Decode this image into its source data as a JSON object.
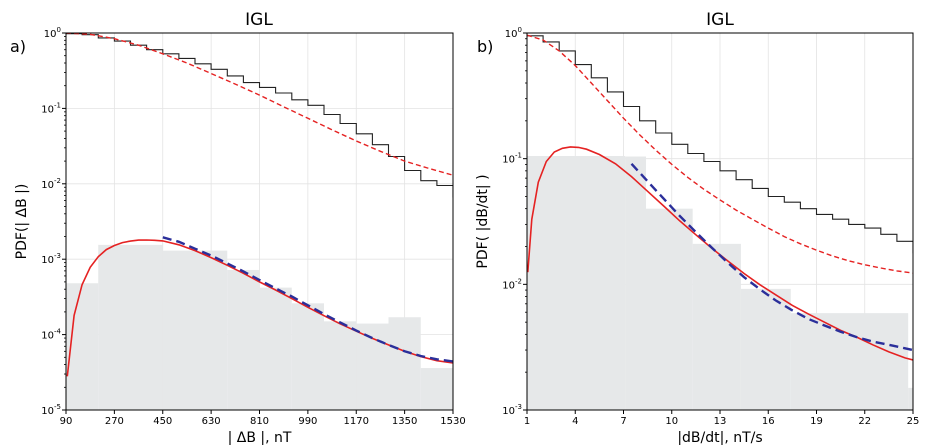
{
  "chart_data": [
    {
      "type": "line",
      "panel_label": "a)",
      "title": "IGL",
      "xlabel": "| ΔB |, nT",
      "ylabel": "PDF(| ΔB |)",
      "x_scale": "linear",
      "y_scale": "log",
      "xlim": [
        90,
        1530
      ],
      "ylim": [
        1e-05,
        1
      ],
      "x_ticks": [
        90,
        270,
        450,
        630,
        810,
        990,
        1170,
        1350,
        1530
      ],
      "y_ticks": [
        {
          "value": 1,
          "mant": "10",
          "exp": "0"
        },
        {
          "value": 0.1,
          "mant": "10",
          "exp": "-1"
        },
        {
          "value": 0.01,
          "mant": "10",
          "exp": "-2"
        },
        {
          "value": 0.001,
          "mant": "10",
          "exp": "-3"
        },
        {
          "value": 0.0001,
          "mant": "10",
          "exp": "-4"
        },
        {
          "value": 1e-05,
          "mant": "10",
          "exp": "-5"
        }
      ],
      "grid": true,
      "histogram": {
        "color": "#e6e8e9",
        "bins": [
          [
            90,
            210,
            0.00048
          ],
          [
            210,
            450,
            0.00155
          ],
          [
            450,
            690,
            0.0013
          ],
          [
            690,
            810,
            0.00072
          ],
          [
            810,
            930,
            0.00042
          ],
          [
            930,
            1050,
            0.00026
          ],
          [
            1050,
            1170,
            0.00015
          ],
          [
            1170,
            1290,
            0.00014
          ],
          [
            1290,
            1410,
            0.00017
          ],
          [
            1410,
            1530,
            3.6e-05
          ]
        ]
      },
      "survival_step": {
        "color": "#222222",
        "edges": [
          90,
          150,
          210,
          270,
          330,
          390,
          450,
          510,
          570,
          630,
          690,
          750,
          810,
          870,
          930,
          990,
          1050,
          1110,
          1170,
          1230,
          1290,
          1350,
          1410,
          1470,
          1530
        ],
        "values": [
          0.98,
          0.95,
          0.86,
          0.78,
          0.69,
          0.6,
          0.53,
          0.46,
          0.39,
          0.33,
          0.27,
          0.22,
          0.19,
          0.16,
          0.13,
          0.11,
          0.083,
          0.063,
          0.046,
          0.033,
          0.023,
          0.015,
          0.011,
          0.0095
        ]
      },
      "survival_fit": {
        "color": "#e52222",
        "x": [
          90,
          180,
          270,
          360,
          450,
          540,
          630,
          720,
          810,
          900,
          990,
          1080,
          1170,
          1260,
          1350,
          1440,
          1530
        ],
        "y": [
          1.0,
          0.96,
          0.84,
          0.69,
          0.53,
          0.4,
          0.29,
          0.21,
          0.15,
          0.105,
          0.074,
          0.052,
          0.037,
          0.027,
          0.02,
          0.016,
          0.013
        ]
      },
      "pdf_fit": {
        "color": "#e52222",
        "x": [
          95,
          120,
          150,
          180,
          210,
          240,
          270,
          300,
          330,
          360,
          390,
          420,
          450,
          510,
          570,
          630,
          690,
          750,
          810,
          870,
          930,
          990,
          1050,
          1110,
          1170,
          1230,
          1290,
          1350,
          1410,
          1470,
          1530
        ],
        "y": [
          2.8e-05,
          0.00018,
          0.00046,
          0.00078,
          0.00108,
          0.00134,
          0.00152,
          0.00166,
          0.00174,
          0.00179,
          0.0018,
          0.00178,
          0.00175,
          0.00155,
          0.0013,
          0.00105,
          0.00083,
          0.00065,
          0.0005,
          0.00039,
          0.0003,
          0.00023,
          0.000178,
          0.000139,
          0.000111,
          8.9e-05,
          7.3e-05,
          6e-05,
          5.1e-05,
          4.5e-05,
          4.2e-05
        ]
      },
      "tail_fit": {
        "color": "#2b2f9a",
        "x": [
          450,
          510,
          570,
          630,
          690,
          750,
          810,
          870,
          930,
          990,
          1050,
          1110,
          1170,
          1230,
          1290,
          1350,
          1410,
          1470,
          1530
        ],
        "y": [
          0.00195,
          0.0017,
          0.00138,
          0.00112,
          0.00088,
          0.00069,
          0.00053,
          0.00041,
          0.00032,
          0.000245,
          0.000187,
          0.000145,
          0.000113,
          9e-05,
          7.3e-05,
          6e-05,
          5.2e-05,
          4.7e-05,
          4.4e-05
        ]
      }
    },
    {
      "type": "line",
      "panel_label": "b)",
      "title": "IGL",
      "xlabel": "|dB/dt|, nT/s",
      "ylabel": "PDF( |dB/dt| )",
      "x_scale": "linear",
      "y_scale": "log",
      "xlim": [
        1,
        25
      ],
      "ylim": [
        0.001,
        1
      ],
      "x_ticks": [
        1,
        4,
        7,
        10,
        13,
        16,
        19,
        22,
        25
      ],
      "y_ticks": [
        {
          "value": 1,
          "mant": "10",
          "exp": "0"
        },
        {
          "value": 0.1,
          "mant": "10",
          "exp": "-1"
        },
        {
          "value": 0.01,
          "mant": "10",
          "exp": "-2"
        },
        {
          "value": 0.001,
          "mant": "10",
          "exp": "-3"
        }
      ],
      "grid": true,
      "histogram": {
        "color": "#e6e8e9",
        "bins": [
          [
            1,
            7.1,
            0.105
          ],
          [
            7.1,
            8.4,
            0.104
          ],
          [
            8.4,
            11.3,
            0.04
          ],
          [
            11.3,
            14.3,
            0.021
          ],
          [
            14.3,
            17.4,
            0.0092
          ],
          [
            17.4,
            24.7,
            0.0059
          ],
          [
            24.7,
            25,
            0.0015
          ]
        ]
      },
      "survival_step": {
        "color": "#222222",
        "edges": [
          1,
          2,
          3,
          4,
          5,
          6,
          7,
          8,
          9,
          10,
          11,
          12,
          13,
          14,
          15,
          16,
          17,
          18,
          19,
          20,
          21,
          22,
          23,
          24,
          25
        ],
        "values": [
          0.95,
          0.85,
          0.72,
          0.56,
          0.44,
          0.34,
          0.26,
          0.2,
          0.16,
          0.13,
          0.11,
          0.095,
          0.08,
          0.068,
          0.058,
          0.05,
          0.045,
          0.04,
          0.036,
          0.033,
          0.03,
          0.028,
          0.025,
          0.022
        ]
      },
      "survival_fit": {
        "color": "#e52222",
        "x": [
          1,
          2,
          3,
          4,
          5,
          6,
          7,
          8,
          9,
          10,
          11,
          12,
          13,
          14,
          15,
          16,
          17,
          18,
          19,
          20,
          21,
          22,
          23,
          24,
          25
        ],
        "y": [
          0.96,
          0.88,
          0.72,
          0.55,
          0.4,
          0.29,
          0.21,
          0.155,
          0.117,
          0.09,
          0.071,
          0.057,
          0.047,
          0.039,
          0.033,
          0.028,
          0.024,
          0.021,
          0.0187,
          0.0168,
          0.0154,
          0.0143,
          0.0135,
          0.0128,
          0.0123
        ]
      },
      "pdf_fit": {
        "color": "#e52222",
        "x": [
          1.05,
          1.3,
          1.7,
          2.2,
          2.7,
          3.2,
          3.7,
          4.2,
          4.7,
          5.5,
          6.5,
          7.5,
          8.5,
          9.5,
          10.5,
          11.5,
          12.5,
          13.5,
          14.5,
          15.5,
          16.5,
          17.5,
          18.5,
          19.5,
          20.5,
          21.5,
          22.5,
          23.5,
          24.5,
          25
        ],
        "y": [
          0.0125,
          0.033,
          0.065,
          0.095,
          0.113,
          0.121,
          0.124,
          0.123,
          0.119,
          0.108,
          0.091,
          0.072,
          0.055,
          0.042,
          0.032,
          0.0248,
          0.0193,
          0.0153,
          0.0122,
          0.0099,
          0.0082,
          0.0068,
          0.0058,
          0.005,
          0.0043,
          0.0038,
          0.0033,
          0.0029,
          0.0026,
          0.0025
        ]
      },
      "tail_fit": {
        "color": "#2b2f9a",
        "x": [
          7.5,
          8.5,
          9.5,
          10.5,
          11.5,
          12.5,
          13.5,
          14.5,
          15.5,
          16.5,
          17.5,
          18.5,
          19.5,
          20.5,
          21.5,
          22.5,
          23.5,
          24.5,
          25
        ],
        "y": [
          0.091,
          0.066,
          0.048,
          0.035,
          0.026,
          0.0195,
          0.0148,
          0.0114,
          0.0091,
          0.0074,
          0.0062,
          0.0053,
          0.0047,
          0.0042,
          0.0038,
          0.0035,
          0.0033,
          0.0031,
          0.003
        ]
      }
    }
  ]
}
